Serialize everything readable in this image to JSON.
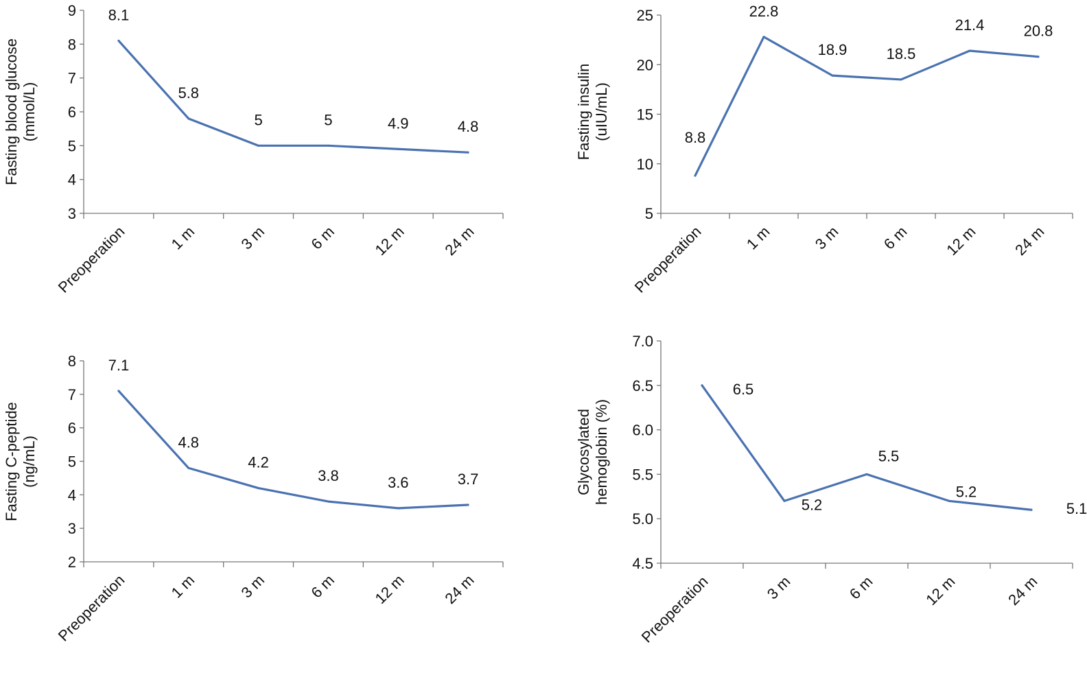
{
  "chart_data": [
    {
      "type": "line",
      "panel": "top-left",
      "ylabel": [
        "Fasting blood glucose",
        "(mmol/L)"
      ],
      "xlabel": "",
      "title": "",
      "categories": [
        "Preoperation",
        "1 m",
        "3 m",
        "6 m",
        "12 m",
        "24 m"
      ],
      "values": [
        8.1,
        5.8,
        5.0,
        5.0,
        4.9,
        4.8
      ],
      "value_labels": [
        "8.1",
        "5.8",
        "5",
        "5",
        "4.9",
        "4.8"
      ],
      "ylim": [
        3,
        9
      ],
      "yticks": [
        "3",
        "4",
        "5",
        "6",
        "7",
        "8",
        "9"
      ],
      "grid": false,
      "line_color": "#4a72b0"
    },
    {
      "type": "line",
      "panel": "top-right",
      "ylabel": [
        "Fasting insulin",
        "(uIU/mL)"
      ],
      "xlabel": "",
      "title": "",
      "categories": [
        "Preoperation",
        "1 m",
        "3 m",
        "6 m",
        "12 m",
        "24 m"
      ],
      "values": [
        8.8,
        22.8,
        18.9,
        18.5,
        21.4,
        20.8
      ],
      "value_labels": [
        "8.8",
        "22.8",
        "18.9",
        "18.5",
        "21.4",
        "20.8"
      ],
      "ylim": [
        5,
        25
      ],
      "yticks": [
        "5",
        "10",
        "15",
        "20",
        "25"
      ],
      "grid": false,
      "line_color": "#4a72b0"
    },
    {
      "type": "line",
      "panel": "bottom-left",
      "ylabel": [
        "Fasting C-peptide",
        "(ng/mL)"
      ],
      "xlabel": "",
      "title": "",
      "categories": [
        "Preoperation",
        "1 m",
        "3 m",
        "6 m",
        "12 m",
        "24 m"
      ],
      "values": [
        7.1,
        4.8,
        4.2,
        3.8,
        3.6,
        3.7
      ],
      "value_labels": [
        "7.1",
        "4.8",
        "4.2",
        "3.8",
        "3.6",
        "3.7"
      ],
      "ylim": [
        2,
        8
      ],
      "yticks": [
        "2",
        "3",
        "4",
        "5",
        "6",
        "7",
        "8"
      ],
      "grid": false,
      "line_color": "#4a72b0"
    },
    {
      "type": "line",
      "panel": "bottom-right",
      "ylabel": [
        "Glycosylated",
        "hemoglobin (%)"
      ],
      "xlabel": "",
      "title": "",
      "categories": [
        "Preoperation",
        "3 m",
        "6 m",
        "12 m",
        "24 m"
      ],
      "values": [
        6.5,
        5.2,
        5.5,
        5.2,
        5.1
      ],
      "value_labels": [
        "6.5",
        "5.2",
        "5.5",
        "5.2",
        "5.1"
      ],
      "ylim": [
        4.5,
        7.0
      ],
      "yticks": [
        "4.5",
        "5.0",
        "5.5",
        "6.0",
        "6.5",
        "7.0"
      ],
      "grid": false,
      "line_color": "#4a72b0"
    }
  ]
}
